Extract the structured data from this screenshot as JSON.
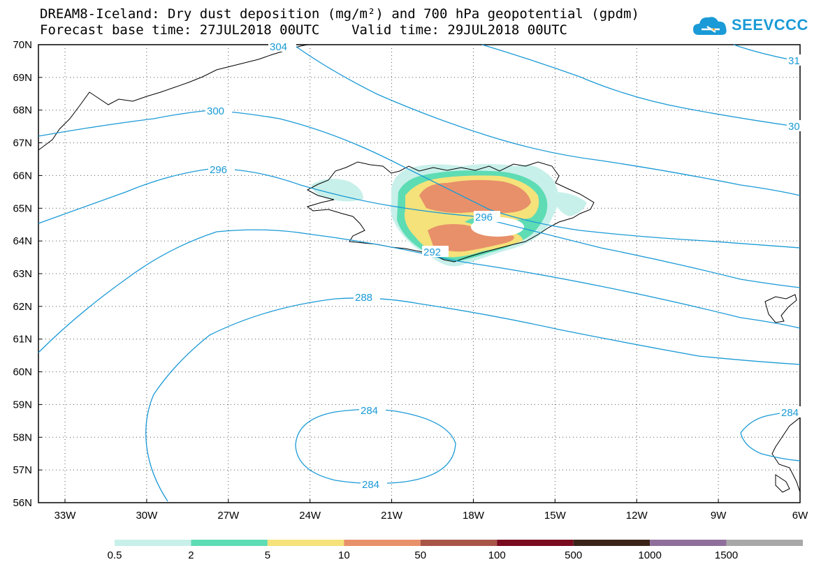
{
  "title": {
    "line1": "DREAM8-Iceland: Dry dust deposition (mg/m²) and 700 hPa geopotential (gpdm)",
    "line2": "Forecast base time: 27JUL2018 00UTC    Valid time: 29JUL2018 00UTC"
  },
  "logo": {
    "text": "SEEVCCC",
    "icon": "cloud-icon",
    "color": "#1a9ad6"
  },
  "axes": {
    "lat_labels": [
      "70N",
      "69N",
      "68N",
      "67N",
      "66N",
      "65N",
      "64N",
      "63N",
      "62N",
      "61N",
      "60N",
      "59N",
      "58N",
      "57N",
      "56N"
    ],
    "lon_labels": [
      "33W",
      "30W",
      "27W",
      "24W",
      "21W",
      "18W",
      "15W",
      "12W",
      "9W",
      "6W"
    ]
  },
  "contour_labels": [
    "304",
    "300",
    "296",
    "296",
    "292",
    "288",
    "284",
    "284",
    "284",
    "31",
    "30"
  ],
  "colorbar": {
    "colors": [
      "#c8f0ea",
      "#5edcb4",
      "#f5e27a",
      "#e8906a",
      "#a85548",
      "#7a0a20",
      "#3a2418",
      "#8f6e9c",
      "#a8a8a8"
    ],
    "labels": [
      "0.5",
      "2",
      "5",
      "10",
      "50",
      "100",
      "500",
      "1000",
      "1500"
    ]
  },
  "colors": {
    "contour": "#1a9ad6",
    "coast": "#000000"
  }
}
